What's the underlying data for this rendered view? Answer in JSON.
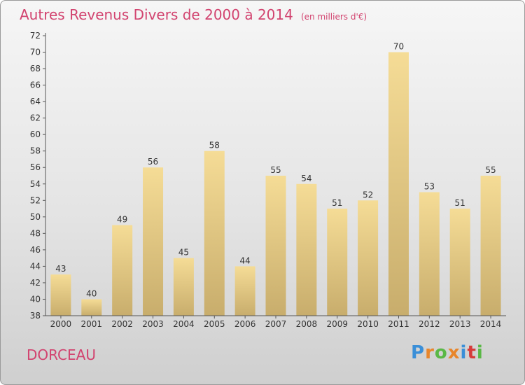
{
  "title": {
    "main": "Autres Revenus Divers de 2000 à 2014",
    "unit": "(en milliers d'€)"
  },
  "location": "DORCEAU",
  "brand": {
    "text": "Proxiti",
    "letter_colors": [
      "#3a8fd8",
      "#e8862b",
      "#5ab846",
      "#e8862b",
      "#3a8fd8",
      "#d63b3b",
      "#5ab846"
    ]
  },
  "colors": {
    "title": "#d2436f",
    "bar_light": "#f5dc96",
    "bar_dark": "#c8ad6c",
    "axis": "#555555"
  },
  "chart_data": {
    "type": "bar",
    "categories": [
      "2000",
      "2001",
      "2002",
      "2003",
      "2004",
      "2005",
      "2006",
      "2007",
      "2008",
      "2009",
      "2010",
      "2011",
      "2012",
      "2013",
      "2014"
    ],
    "values": [
      43,
      40,
      49,
      56,
      45,
      58,
      44,
      55,
      54,
      51,
      52,
      70,
      53,
      51,
      55
    ],
    "ylim": [
      38,
      72
    ],
    "yticks": [
      38,
      40,
      42,
      44,
      46,
      48,
      50,
      52,
      54,
      56,
      58,
      60,
      62,
      64,
      66,
      68,
      70,
      72
    ],
    "grid": false,
    "legend": "none"
  }
}
